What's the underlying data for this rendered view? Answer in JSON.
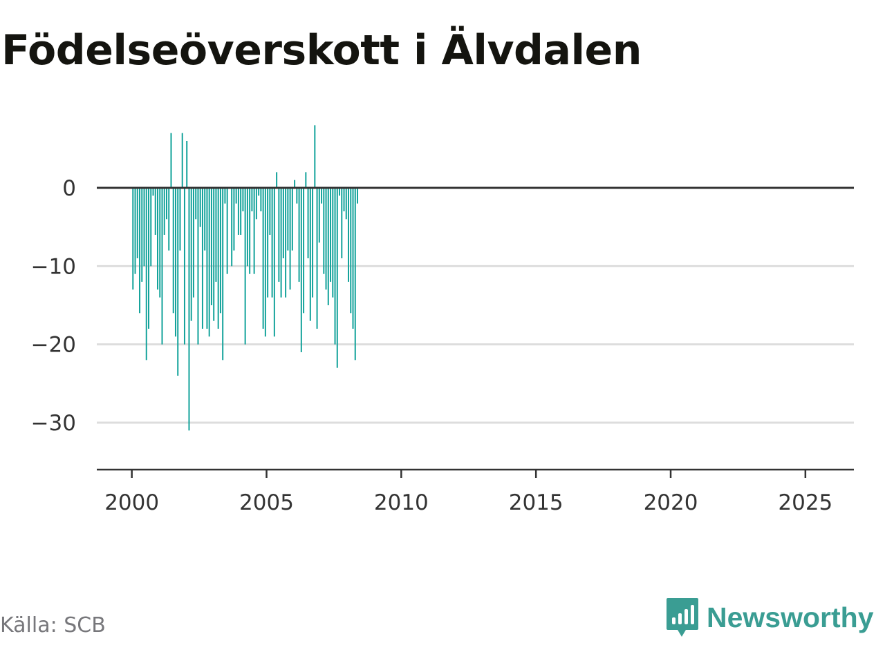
{
  "title": "Födelseöverskott i Älvdalen",
  "source": "Källa: SCB",
  "brand": {
    "name": "Newsworthy",
    "color": "#3a9d93",
    "icon": "newsworthy-chart-bubble-icon"
  },
  "colors": {
    "bar": "#14a39b",
    "zero_line": "#333333",
    "grid": "#dddddd",
    "axis": "#333333",
    "tick_text": "#333333"
  },
  "chart_data": {
    "type": "bar",
    "frequency": "monthly-like periods (12 per year)",
    "x_start": "2000-01",
    "xlim": [
      1998.7,
      2026.8
    ],
    "ylim": [
      -36,
      9
    ],
    "yticks": [
      0,
      -10,
      -20,
      -30
    ],
    "ytick_labels": [
      "0",
      "−10",
      "−20",
      "−30"
    ],
    "xticks": [
      2000,
      2005,
      2010,
      2015,
      2020,
      2025
    ],
    "xtick_labels": [
      "2000",
      "2005",
      "2010",
      "2015",
      "2020",
      "2025"
    ],
    "grid": "horizontal",
    "values": [
      -13,
      -11,
      -9,
      -16,
      -12,
      -10,
      -22,
      -18,
      -10,
      -1,
      -6,
      -13,
      -14,
      -20,
      -6,
      -4,
      -8,
      7,
      -16,
      -19,
      -24,
      -8,
      7,
      -20,
      6,
      -31,
      -17,
      -14,
      -4,
      -20,
      -5,
      -18,
      -8,
      -18,
      -19,
      -15,
      -17,
      -12,
      -18,
      -16,
      -22,
      -2,
      -11,
      0,
      -10,
      -8,
      -2,
      -6,
      -6,
      -3,
      -20,
      -10,
      -11,
      -3,
      -11,
      -4,
      -1,
      -3,
      -18,
      -19,
      -14,
      -6,
      -14,
      -19,
      2,
      -12,
      -14,
      -9,
      -14,
      -8,
      -13,
      -8,
      1,
      -2,
      -12,
      -21,
      -16,
      2,
      -9,
      -17,
      -14,
      8,
      -18,
      -7,
      -2,
      -11,
      -13,
      -15,
      -12,
      -14,
      -20,
      -23,
      -1,
      -9,
      -3,
      -4,
      -12,
      -16,
      -18,
      -22,
      -2
    ]
  }
}
